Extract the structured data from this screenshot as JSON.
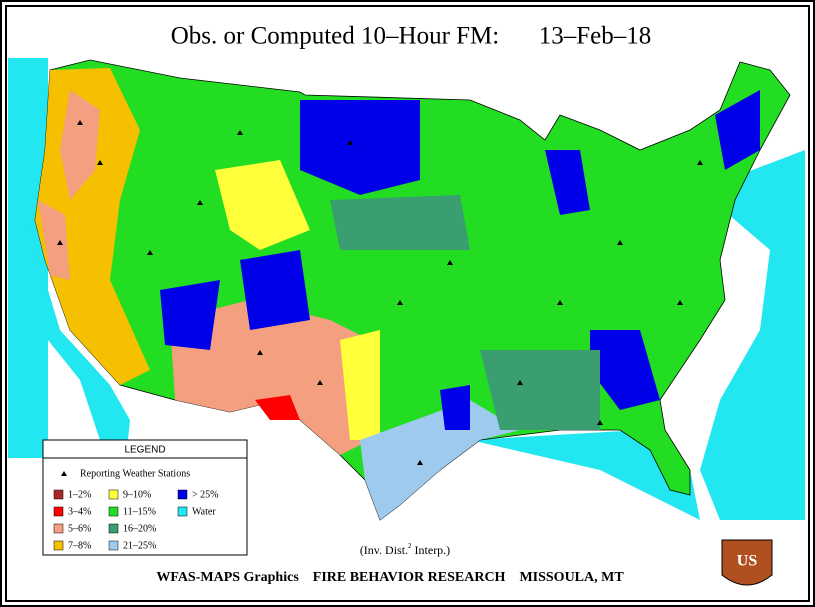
{
  "header": {
    "title": "Obs. or Computed 10–Hour FM:",
    "date": "13–Feb–18"
  },
  "legend": {
    "title": "LEGEND",
    "stations": "Reporting Weather Stations",
    "items": [
      {
        "label": "1–2%",
        "color": "#a82828"
      },
      {
        "label": "3–4%",
        "color": "#ff0000"
      },
      {
        "label": "5–6%",
        "color": "#f4a080"
      },
      {
        "label": "7–8%",
        "color": "#f5c000"
      },
      {
        "label": "9–10%",
        "color": "#ffff3a"
      },
      {
        "label": "11–15%",
        "color": "#22dd22"
      },
      {
        "label": "16–20%",
        "color": "#3a9e70"
      },
      {
        "label": "21–25%",
        "color": "#9ecaee"
      },
      {
        "label": "> 25%",
        "color": "#0000e8"
      },
      {
        "label": "Water",
        "color": "#22e6f0"
      }
    ]
  },
  "note": {
    "text": "(Inv. Dist.",
    "sup": "2",
    "after": " Interp.)"
  },
  "footer": "WFAS-MAPS Graphics    FIRE BEHAVIOR RESEARCH    MISSOULA, MT",
  "logo": "US"
}
